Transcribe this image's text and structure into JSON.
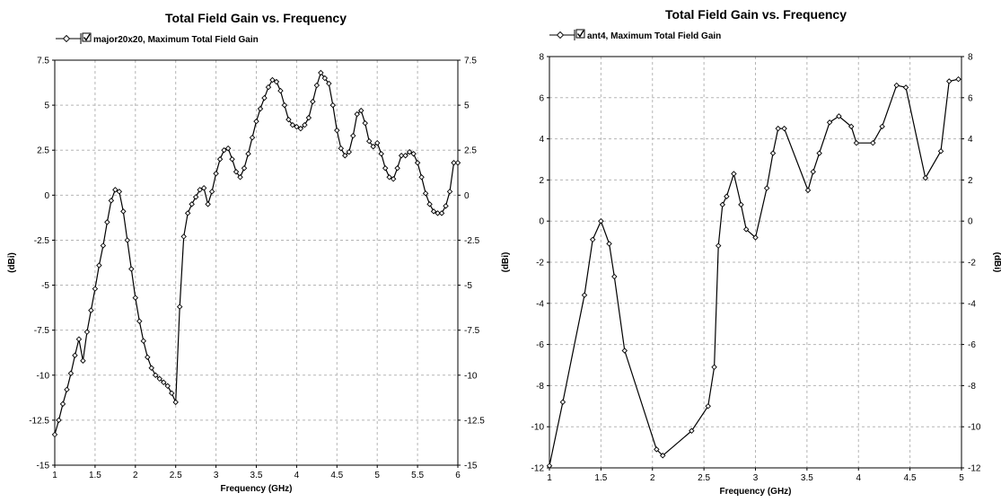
{
  "chart_data": [
    {
      "type": "line",
      "title": "Total Field Gain vs. Frequency",
      "legend": {
        "label": "major20x20, Maximum Total Field Gain",
        "checked": true,
        "placement": "top-left"
      },
      "xlabel": "Frequency (GHz)",
      "ylabel": "(dBi)",
      "xlim": [
        1,
        6
      ],
      "ylim": [
        -15,
        7.5
      ],
      "x_ticks": [
        "1",
        "1.5",
        "2",
        "2.5",
        "3",
        "3.5",
        "4",
        "4.5",
        "5",
        "5.5",
        "6"
      ],
      "y_ticks": [
        "7.5",
        "5",
        "2.5",
        "0",
        "-2.5",
        "-5",
        "-7.5",
        "-10",
        "-12.5",
        "-15"
      ],
      "y_ticks_right": [
        "7.5",
        "5",
        "2.5",
        "0",
        "-2.5",
        "-5",
        "-7.5",
        "-10",
        "-12.5",
        "-15"
      ],
      "grid": true,
      "series": [
        {
          "color": "#000000",
          "marker": "diamond",
          "x": [
            1.0,
            1.05,
            1.1,
            1.15,
            1.2,
            1.25,
            1.3,
            1.35,
            1.4,
            1.45,
            1.5,
            1.55,
            1.6,
            1.65,
            1.7,
            1.75,
            1.8,
            1.85,
            1.9,
            1.95,
            2.0,
            2.05,
            2.1,
            2.15,
            2.2,
            2.25,
            2.3,
            2.35,
            2.4,
            2.45,
            2.5,
            2.55,
            2.6,
            2.65,
            2.7,
            2.75,
            2.8,
            2.85,
            2.9,
            2.95,
            3.0,
            3.05,
            3.1,
            3.15,
            3.2,
            3.25,
            3.3,
            3.35,
            3.4,
            3.45,
            3.5,
            3.55,
            3.6,
            3.65,
            3.7,
            3.75,
            3.8,
            3.85,
            3.9,
            3.95,
            4.0,
            4.05,
            4.1,
            4.15,
            4.2,
            4.25,
            4.3,
            4.35,
            4.4,
            4.45,
            4.5,
            4.55,
            4.6,
            4.65,
            4.7,
            4.75,
            4.8,
            4.85,
            4.9,
            4.95,
            5.0,
            5.05,
            5.1,
            5.15,
            5.2,
            5.25,
            5.3,
            5.35,
            5.4,
            5.45,
            5.5,
            5.55,
            5.6,
            5.65,
            5.7,
            5.75,
            5.8,
            5.85,
            5.9,
            5.95,
            6.0
          ],
          "values": [
            -13.3,
            -12.5,
            -11.6,
            -10.8,
            -9.9,
            -8.9,
            -8.0,
            -9.2,
            -7.6,
            -6.4,
            -5.2,
            -3.9,
            -2.8,
            -1.5,
            -0.3,
            0.3,
            0.2,
            -0.9,
            -2.5,
            -4.1,
            -5.7,
            -7.0,
            -8.1,
            -9.0,
            -9.6,
            -10.0,
            -10.2,
            -10.4,
            -10.6,
            -11.0,
            -11.5,
            -6.2,
            -2.3,
            -1.0,
            -0.5,
            -0.1,
            0.3,
            0.4,
            -0.5,
            0.2,
            1.2,
            2.0,
            2.5,
            2.6,
            2.0,
            1.3,
            1.0,
            1.5,
            2.3,
            3.2,
            4.1,
            4.8,
            5.4,
            6.0,
            6.4,
            6.3,
            5.8,
            5.0,
            4.2,
            3.9,
            3.8,
            3.7,
            3.9,
            4.3,
            5.2,
            6.1,
            6.8,
            6.5,
            6.2,
            5.0,
            3.6,
            2.6,
            2.2,
            2.4,
            3.3,
            4.5,
            4.7,
            4.0,
            3.0,
            2.7,
            2.9,
            2.3,
            1.5,
            1.0,
            0.9,
            1.5,
            2.2,
            2.2,
            2.4,
            2.3,
            1.8,
            1.0,
            0.1,
            -0.5,
            -0.9,
            -1.0,
            -1.0,
            -0.6,
            0.2,
            1.8,
            1.8
          ]
        }
      ]
    },
    {
      "type": "line",
      "title": "Total Field Gain vs. Frequency",
      "legend": {
        "label": "ant4, Maximum Total Field Gain",
        "checked": true,
        "placement": "top-left"
      },
      "xlabel": "Frequency (GHz)",
      "ylabel": "(dBi)",
      "ylabel_right": "(dBi)",
      "xlim": [
        1,
        5
      ],
      "ylim": [
        -12,
        8
      ],
      "x_ticks": [
        "1",
        "1.5",
        "2",
        "2.5",
        "3",
        "3.5",
        "4",
        "4.5",
        "5"
      ],
      "y_ticks": [
        "8",
        "6",
        "4",
        "2",
        "0",
        "-2",
        "-4",
        "-6",
        "-8",
        "-10",
        "-12"
      ],
      "y_ticks_right": [
        "8",
        "6",
        "4",
        "2",
        "0",
        "-2",
        "-4",
        "-6",
        "-8",
        "-10",
        "-12"
      ],
      "grid": true,
      "series": [
        {
          "color": "#000000",
          "marker": "diamond",
          "x": [
            1.0,
            1.13,
            1.34,
            1.42,
            1.5,
            1.58,
            1.63,
            1.73,
            2.04,
            2.1,
            2.38,
            2.54,
            2.6,
            2.64,
            2.68,
            2.72,
            2.79,
            2.86,
            2.91,
            3.0,
            3.11,
            3.17,
            3.22,
            3.28,
            3.51,
            3.56,
            3.62,
            3.72,
            3.81,
            3.93,
            3.98,
            4.14,
            4.23,
            4.37,
            4.46,
            4.65,
            4.8,
            4.88,
            4.97
          ],
          "values": [
            -11.9,
            -8.8,
            -3.6,
            -0.9,
            0.0,
            -1.1,
            -2.7,
            -6.3,
            -11.1,
            -11.4,
            -10.2,
            -9.0,
            -7.1,
            -1.2,
            0.8,
            1.2,
            2.3,
            0.8,
            -0.4,
            -0.8,
            1.6,
            3.3,
            4.5,
            4.5,
            1.5,
            2.4,
            3.3,
            4.8,
            5.1,
            4.6,
            3.8,
            3.8,
            4.6,
            6.6,
            6.5,
            2.1,
            3.4,
            6.8,
            6.9
          ]
        }
      ]
    }
  ]
}
